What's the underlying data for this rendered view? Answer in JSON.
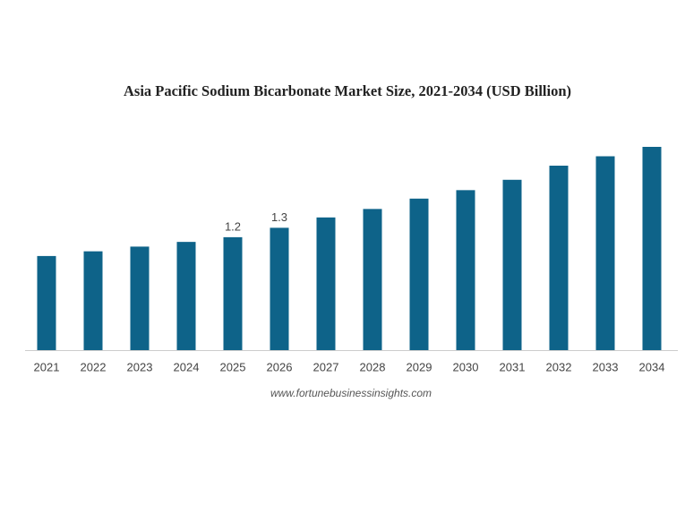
{
  "chart_data": {
    "type": "bar",
    "title": "Asia Pacific Sodium Bicarbonate Market Size, 2021-2034 (USD Billion)",
    "categories": [
      "2021",
      "2022",
      "2023",
      "2024",
      "2025",
      "2026",
      "2027",
      "2028",
      "2029",
      "2030",
      "2031",
      "2032",
      "2033",
      "2034"
    ],
    "values": [
      1.0,
      1.05,
      1.1,
      1.15,
      1.2,
      1.3,
      1.41,
      1.5,
      1.61,
      1.7,
      1.81,
      1.96,
      2.06,
      2.16
    ],
    "value_labels": [
      null,
      null,
      null,
      null,
      "1.2",
      "1.3",
      null,
      null,
      null,
      null,
      null,
      null,
      null,
      null
    ],
    "color": "#0e6389",
    "source": "www.fortunebusinessinsights.com"
  }
}
